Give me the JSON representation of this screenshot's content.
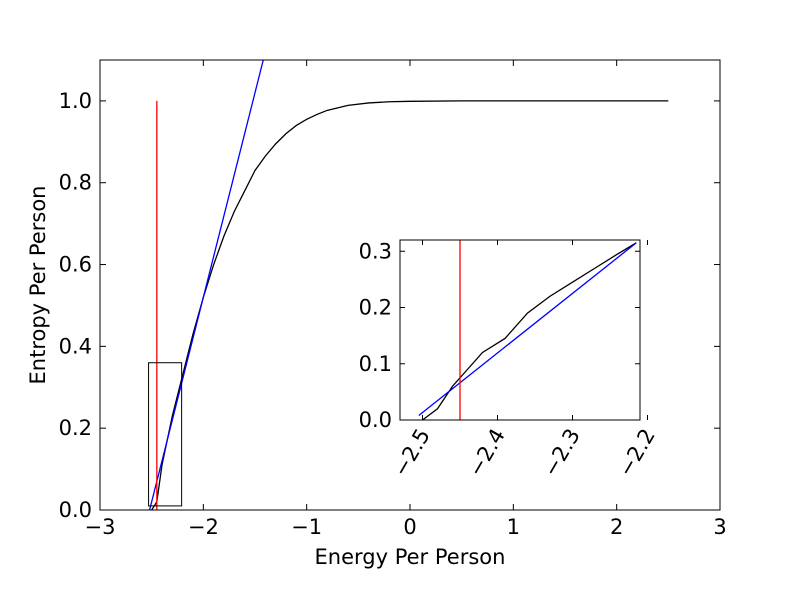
{
  "chart_data": [
    {
      "panel": "main",
      "type": "line",
      "xlabel": "Energy Per Person",
      "ylabel": "Entropy Per Person",
      "xlim": [
        -3,
        3
      ],
      "ylim": [
        0,
        1.1
      ],
      "xticks": [
        -3,
        -2,
        -1,
        0,
        1,
        2,
        3
      ],
      "xtick_labels": [
        "−3",
        "−2",
        "−1",
        "0",
        "1",
        "2",
        "3"
      ],
      "yticks": [
        0.0,
        0.2,
        0.4,
        0.6,
        0.8,
        1.0
      ],
      "ytick_labels": [
        "0.0",
        "0.2",
        "0.4",
        "0.6",
        "0.8",
        "1.0"
      ],
      "grid": false,
      "legend": "none",
      "series": [
        {
          "color": "#000000",
          "x": [
            -2.5,
            -2.45,
            -2.4,
            -2.3,
            -2.2,
            -2.1,
            -2.0,
            -1.9,
            -1.8,
            -1.7,
            -1.6,
            -1.5,
            -1.4,
            -1.3,
            -1.2,
            -1.1,
            -1.0,
            -0.9,
            -0.8,
            -0.6,
            -0.4,
            -0.2,
            0.0,
            0.5,
            1.0,
            1.5,
            2.0,
            2.5
          ],
          "y": [
            0.0,
            0.02,
            0.11,
            0.23,
            0.33,
            0.43,
            0.52,
            0.6,
            0.67,
            0.73,
            0.78,
            0.83,
            0.865,
            0.895,
            0.92,
            0.94,
            0.955,
            0.967,
            0.977,
            0.989,
            0.995,
            0.998,
            0.999,
            1.0,
            1.0,
            1.0,
            1.0,
            1.0
          ]
        },
        {
          "color": "#0000ff",
          "x": [
            -2.52,
            -1.42
          ],
          "y": [
            0.0,
            1.1
          ]
        },
        {
          "color": "#ff0000",
          "x": [
            -2.45,
            -2.45
          ],
          "y": [
            0.0,
            1.0
          ]
        }
      ],
      "zoom_box": {
        "x": [
          -2.53,
          -2.21
        ],
        "y": [
          0.01,
          0.36
        ]
      }
    },
    {
      "panel": "inset",
      "type": "line",
      "xlim": [
        -2.53,
        -2.21
      ],
      "ylim": [
        0.0,
        0.32
      ],
      "xticks": [
        -2.5,
        -2.4,
        -2.3,
        -2.2
      ],
      "xtick_labels": [
        "−2.5",
        "−2.4",
        "−2.3",
        "−2.2"
      ],
      "xtick_rotation": -60,
      "yticks": [
        0.0,
        0.1,
        0.2,
        0.3
      ],
      "ytick_labels": [
        "0.0",
        "0.1",
        "0.2",
        "0.3"
      ],
      "grid": false,
      "legend": "none",
      "series": [
        {
          "color": "#000000",
          "x": [
            -2.5,
            -2.48,
            -2.46,
            -2.44,
            -2.42,
            -2.39,
            -2.36,
            -2.33,
            -2.3,
            -2.27,
            -2.24,
            -2.215
          ],
          "y": [
            0.0,
            0.02,
            0.06,
            0.09,
            0.12,
            0.145,
            0.19,
            0.22,
            0.245,
            0.27,
            0.295,
            0.315
          ]
        },
        {
          "color": "#0000ff",
          "x": [
            -2.505,
            -2.215
          ],
          "y": [
            0.008,
            0.315
          ]
        },
        {
          "color": "#ff0000",
          "x": [
            -2.45,
            -2.45
          ],
          "y": [
            0.0,
            0.32
          ]
        }
      ]
    }
  ]
}
